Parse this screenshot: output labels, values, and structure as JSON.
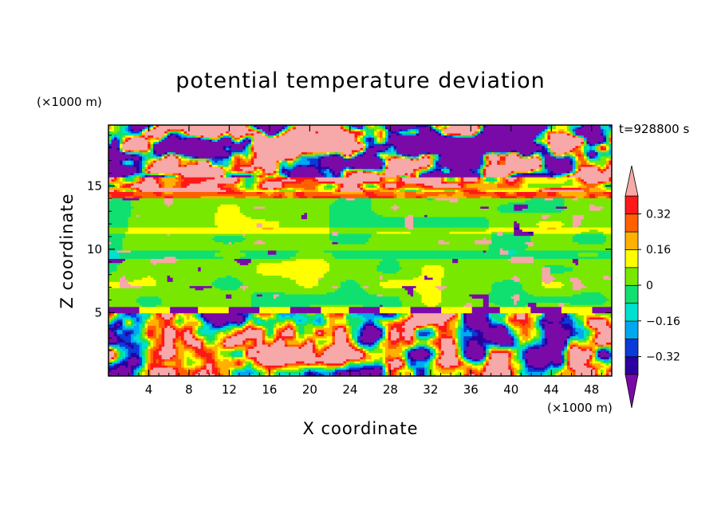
{
  "chart_data": {
    "type": "heatmap",
    "title": "potential temperature deviation",
    "xlabel": "X coordinate",
    "ylabel": "Z coordinate",
    "x_unit": "(×1000 m)",
    "y_unit": "(×1000 m)",
    "time_label": "t=928800 s",
    "xlim": [
      0,
      50
    ],
    "ylim": [
      0,
      19.8
    ],
    "x_ticks": [
      4,
      8,
      12,
      16,
      20,
      24,
      28,
      32,
      36,
      40,
      44,
      48
    ],
    "y_ticks": [
      5,
      10,
      15
    ],
    "colorbar": {
      "levels": [
        -0.4,
        -0.32,
        -0.24,
        -0.16,
        -0.08,
        0,
        0.08,
        0.16,
        0.24,
        0.32,
        0.4
      ],
      "tick_values": [
        0.32,
        0.16,
        0,
        -0.16,
        -0.32
      ],
      "tick_labels": [
        "0.32",
        "0.16",
        "0",
        "−0.16",
        "−0.32"
      ],
      "colors": [
        "#7a0aa8",
        "#2a00a0",
        "#0a3ad8",
        "#00a8f0",
        "#00e0d0",
        "#10e070",
        "#78e800",
        "#ffff00",
        "#ffb000",
        "#ff6000",
        "#ff1818",
        "#f7a8a8"
      ],
      "extend": "both"
    },
    "layers": [
      {
        "z_range": [
          15.5,
          19.8
        ],
        "description": "upper layer dominated by alternating purple (below -0.4) and pink (above 0.4) patches"
      },
      {
        "z_range": [
          14.2,
          15.5
        ],
        "description": "thin positive band near 14.5 km with red/orange strip"
      },
      {
        "z_range": [
          5.3,
          14.2
        ],
        "description": "mostly near-zero (green) with weak horizontal banding"
      },
      {
        "z_range": [
          0,
          5.3
        ],
        "description": "convective layer with strong mixed positive and negative anomalies"
      }
    ]
  }
}
